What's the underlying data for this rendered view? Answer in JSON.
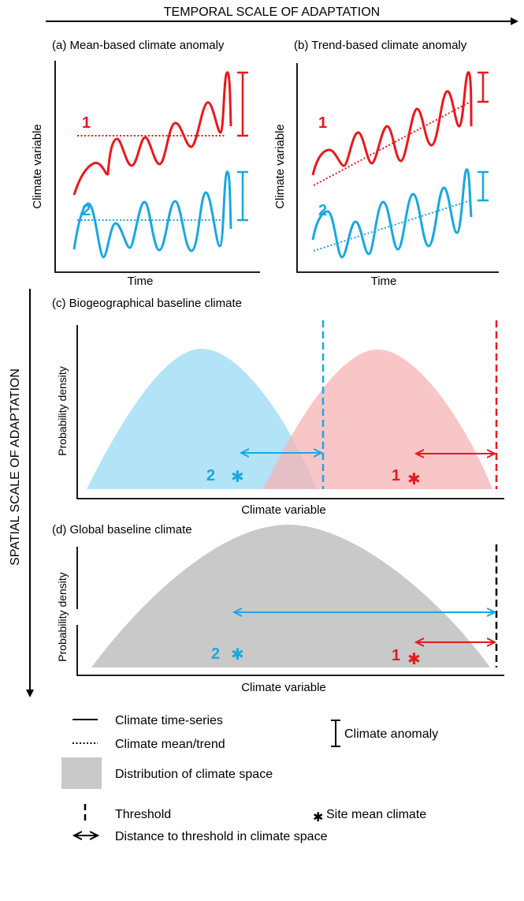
{
  "titles": {
    "temporal_axis": "TEMPORAL SCALE OF ADAPTATION",
    "spatial_axis": "SPATIAL SCALE OF ADAPTATION"
  },
  "panel_a": {
    "title": "(a) Mean-based climate anomaly",
    "ylabel": "Climate variable",
    "xlabel": "Time",
    "series1_label": "1",
    "series2_label": "2"
  },
  "panel_b": {
    "title": "(b) Trend-based climate anomaly",
    "ylabel": "Climate variable",
    "xlabel": "Time",
    "series1_label": "1",
    "series2_label": "2"
  },
  "panel_c": {
    "title": "(c) Biogeographical baseline climate",
    "ylabel": "Probability density",
    "xlabel": "Climate variable",
    "site2_label": "2",
    "site1_label": "1"
  },
  "panel_d": {
    "title": "(d) Global baseline climate",
    "ylabel": "Probability density",
    "xlabel": "Climate variable",
    "site2_label": "2",
    "site1_label": "1"
  },
  "legend": {
    "time_series": "Climate time-series",
    "mean_trend": "Climate mean/trend",
    "anomaly": "Climate anomaly",
    "distribution": "Distribution of climate space",
    "threshold": "Threshold",
    "site_mean": "Site mean climate",
    "distance": "Distance to threshold in climate space"
  },
  "colors": {
    "series1": "#e8191e",
    "series2": "#1ba7e0",
    "dist1": "#f7b3b6",
    "dist2": "#a6def4",
    "global_dist": "#c9c9c9"
  }
}
